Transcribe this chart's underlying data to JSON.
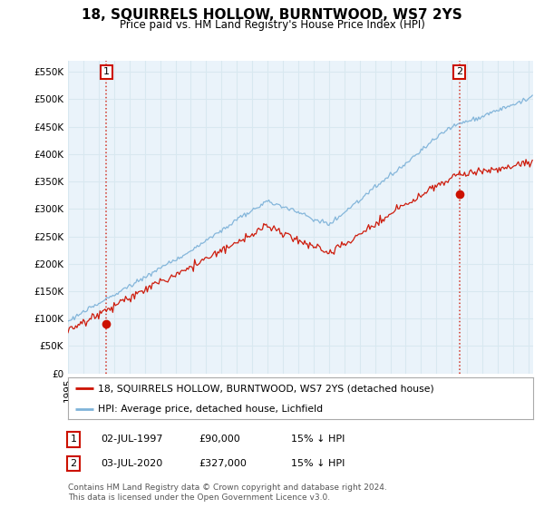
{
  "title": "18, SQUIRRELS HOLLOW, BURNTWOOD, WS7 2YS",
  "subtitle": "Price paid vs. HM Land Registry's House Price Index (HPI)",
  "ylim": [
    0,
    570000
  ],
  "yticks": [
    0,
    50000,
    100000,
    150000,
    200000,
    250000,
    300000,
    350000,
    400000,
    450000,
    500000,
    550000
  ],
  "xlim_start": 1995.0,
  "xlim_end": 2025.3,
  "sale1_date": 1997.5,
  "sale1_price": 90000,
  "sale2_date": 2020.5,
  "sale2_price": 327000,
  "hpi_color": "#7fb3d9",
  "price_color": "#cc1100",
  "grid_color": "#d8e8f0",
  "bg_color": "#ffffff",
  "plot_bg_color": "#eaf3fa",
  "legend_label_price": "18, SQUIRRELS HOLLOW, BURNTWOOD, WS7 2YS (detached house)",
  "legend_label_hpi": "HPI: Average price, detached house, Lichfield",
  "footnote": "Contains HM Land Registry data © Crown copyright and database right 2024.\nThis data is licensed under the Open Government Licence v3.0."
}
